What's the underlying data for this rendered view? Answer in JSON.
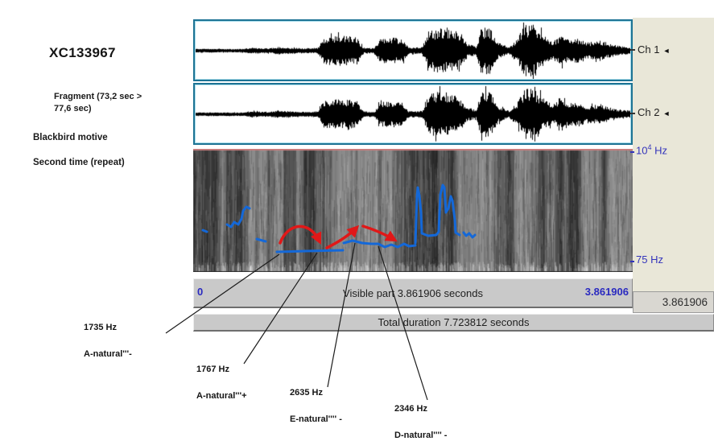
{
  "left_panel": {
    "recording_id": "XC133967",
    "fragment_line1": "Fragment (73,2 sec >",
    "fragment_line2": "77,6 sec)",
    "motive": "Blackbird motive",
    "repeat": "Second time (repeat)"
  },
  "channels": [
    {
      "label": "Ch 1",
      "speaker_icon": "◄"
    },
    {
      "label": "Ch 2",
      "speaker_icon": "◄"
    }
  ],
  "axis": {
    "freq_top_base": "10",
    "freq_top_exp": "4",
    "freq_top_unit": " Hz",
    "freq_bottom": "75 Hz",
    "time_start": "0",
    "time_end": "3.861906"
  },
  "bars": {
    "visible": "Visible part 3.861906 seconds",
    "total": "Total duration 7.723812 seconds",
    "selection": "3.861906"
  },
  "annotations": [
    {
      "freq": "1735 Hz",
      "note": "A-natural'''-"
    },
    {
      "freq": "1767 Hz",
      "note": "A-natural'''+"
    },
    {
      "freq": "2635 Hz",
      "note": "E-natural'''' -"
    },
    {
      "freq": "2346 Hz",
      "note": "D-natural'''' -"
    }
  ],
  "colors": {
    "pitch_blue": "#1468d8",
    "arrow_red": "#e01818",
    "axis_blue": "#3434bb",
    "panel_border_teal": "#1d7394",
    "beige_panel": "#e9e7d8",
    "bar_gray": "#c9c9c9",
    "spectrogram_top_line": "#c97e7e",
    "leader_line": "#1c1c1c"
  },
  "graphics": {
    "waveform_envelope": [
      [
        0,
        0.06
      ],
      [
        0.1,
        0.05
      ],
      [
        0.13,
        0.1
      ],
      [
        0.17,
        0.08
      ],
      [
        0.19,
        0.13
      ],
      [
        0.22,
        0.1
      ],
      [
        0.25,
        0.08
      ],
      [
        0.28,
        0.1
      ],
      [
        0.295,
        0.52
      ],
      [
        0.33,
        0.56
      ],
      [
        0.37,
        0.52
      ],
      [
        0.385,
        0.1
      ],
      [
        0.41,
        0.08
      ],
      [
        0.425,
        0.46
      ],
      [
        0.455,
        0.5
      ],
      [
        0.475,
        0.42
      ],
      [
        0.49,
        0.1
      ],
      [
        0.52,
        0.12
      ],
      [
        0.535,
        0.72
      ],
      [
        0.56,
        0.88
      ],
      [
        0.6,
        0.75
      ],
      [
        0.625,
        0.25
      ],
      [
        0.645,
        0.15
      ],
      [
        0.655,
        0.82
      ],
      [
        0.675,
        0.92
      ],
      [
        0.695,
        0.3
      ],
      [
        0.72,
        0.12
      ],
      [
        0.74,
        0.45
      ],
      [
        0.755,
        0.96
      ],
      [
        0.775,
        1.0
      ],
      [
        0.8,
        0.6
      ],
      [
        0.82,
        0.35
      ],
      [
        0.84,
        0.55
      ],
      [
        0.86,
        0.4
      ],
      [
        0.88,
        0.46
      ],
      [
        0.9,
        0.3
      ],
      [
        0.93,
        0.38
      ],
      [
        0.95,
        0.25
      ],
      [
        0.97,
        0.18
      ],
      [
        1,
        0.12
      ]
    ],
    "spec_dark_bands": [
      120,
      300,
      395
    ],
    "pitch_traces": [
      [
        [
          12,
          101
        ],
        [
          17,
          103
        ]
      ],
      [
        [
          42,
          94
        ],
        [
          47,
          97
        ],
        [
          51,
          91
        ],
        [
          56,
          94
        ],
        [
          60,
          87
        ],
        [
          62,
          77
        ],
        [
          66,
          72
        ],
        [
          70,
          74
        ]
      ],
      [
        [
          79,
          112
        ],
        [
          90,
          115
        ]
      ],
      [
        [
          104,
          128
        ],
        [
          140,
          127
        ],
        [
          186,
          126
        ]
      ],
      [
        [
          187,
          117
        ],
        [
          198,
          114
        ],
        [
          210,
          117
        ],
        [
          221,
          118
        ],
        [
          230,
          118
        ],
        [
          238,
          122
        ],
        [
          246,
          119
        ],
        [
          254,
          122
        ],
        [
          262,
          118
        ],
        [
          268,
          121
        ],
        [
          276,
          120
        ]
      ],
      [
        [
          276,
          117
        ],
        [
          278,
          60
        ],
        [
          279,
          48
        ],
        [
          281,
          58
        ],
        [
          283,
          79
        ],
        [
          284,
          105
        ],
        [
          292,
          108
        ],
        [
          302,
          107
        ],
        [
          305,
          103
        ],
        [
          307,
          57
        ],
        [
          310,
          45
        ],
        [
          312,
          48
        ],
        [
          314,
          79
        ],
        [
          317,
          74
        ],
        [
          320,
          59
        ],
        [
          322,
          64
        ],
        [
          325,
          88
        ],
        [
          326,
          104
        ],
        [
          331,
          107
        ]
      ],
      [
        [
          336,
          104
        ],
        [
          339,
          108
        ],
        [
          343,
          105
        ],
        [
          347,
          110
        ],
        [
          350,
          107
        ]
      ]
    ],
    "arrows": [
      "M108,117 C116,94 143,86 157,115",
      "M166,123 C178,117 192,109 203,98",
      "M211,96 C224,100 238,106 250,113"
    ],
    "leader_lines": [
      [
        347,
        316,
        206,
        414
      ],
      [
        394,
        314,
        303,
        452
      ],
      [
        441,
        302,
        407,
        481
      ],
      [
        470,
        306,
        531,
        497
      ]
    ]
  }
}
